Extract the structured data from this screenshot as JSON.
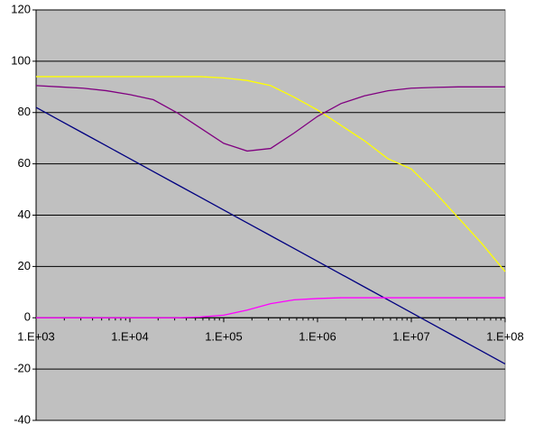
{
  "chart_data": {
    "type": "line",
    "x": [
      1000,
      1778,
      3162,
      5623,
      10000,
      17783,
      31623,
      56234,
      100000,
      177828,
      316228,
      562341,
      1000000,
      1778279,
      3162278,
      5623413,
      10000000,
      17782794,
      31622777,
      56234133,
      100000000
    ],
    "series": [
      {
        "color": "#ffff00",
        "values": [
          94,
          94,
          94,
          94,
          94,
          94,
          94,
          94,
          93.5,
          92.5,
          90.5,
          86,
          81,
          75,
          69,
          62,
          58,
          49,
          39,
          29,
          18
        ]
      },
      {
        "color": "#800080",
        "values": [
          90.5,
          90,
          89.5,
          88.5,
          87,
          85,
          80,
          74,
          68,
          65,
          66,
          72,
          78.5,
          83.5,
          86.5,
          88.5,
          89.5,
          89.8,
          90,
          90,
          90
        ]
      },
      {
        "color": "#000080",
        "values": [
          82,
          77,
          72,
          67,
          62,
          57,
          52,
          47,
          42,
          37,
          32,
          27,
          22,
          17,
          12,
          7,
          2,
          -3,
          -8,
          -13,
          -18
        ]
      },
      {
        "color": "#ff00ff",
        "values": [
          0,
          0,
          0,
          0,
          0,
          0,
          0,
          0.3,
          1,
          3,
          5.5,
          7,
          7.5,
          7.8,
          7.8,
          7.8,
          7.8,
          7.8,
          7.8,
          7.8,
          7.8
        ]
      }
    ],
    "xlog": true,
    "xlim": [
      1000,
      100000000
    ],
    "xticks": [
      {
        "value": 1000,
        "label": "1.E+03"
      },
      {
        "value": 10000,
        "label": "1.E+04"
      },
      {
        "value": 100000,
        "label": "1.E+05"
      },
      {
        "value": 1000000,
        "label": "1.E+06"
      },
      {
        "value": 10000000,
        "label": "1.E+07"
      },
      {
        "value": 100000000,
        "label": "1.E+08"
      }
    ],
    "ylim": [
      -40,
      120
    ],
    "yticks": [
      -40,
      -20,
      0,
      20,
      40,
      60,
      80,
      100,
      120
    ],
    "grid": true
  }
}
